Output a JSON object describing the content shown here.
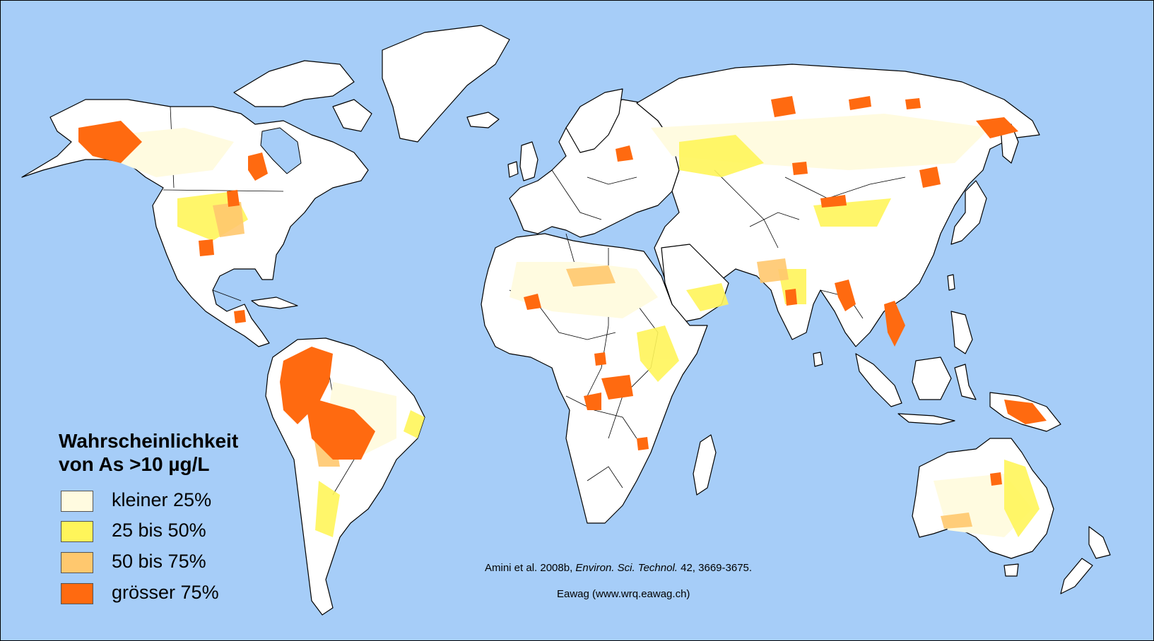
{
  "legend": {
    "title_line1": "Wahrscheinlichkeit",
    "title_line2": "von As >10 µg/L",
    "items": [
      {
        "label": "kleiner 25%",
        "color": "#fffbe0"
      },
      {
        "label": "25 bis 50%",
        "color": "#fff55a"
      },
      {
        "label": "50 bis 75%",
        "color": "#ffc86e"
      },
      {
        "label": "grösser 75%",
        "color": "#ff6a10"
      }
    ]
  },
  "citation": {
    "authors": "Amini et al. 2008b, ",
    "journal": "Environ. Sci. Technol.",
    "details": " 42, 3669-3675."
  },
  "credit": "Eawag (www.wrq.eawag.ch)",
  "colors": {
    "ocean": "#a6cdf8",
    "land": "#ffffff"
  }
}
